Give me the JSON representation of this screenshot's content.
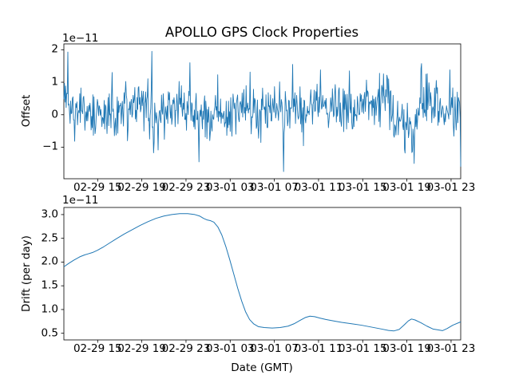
{
  "figure": {
    "title": "APOLLO GPS Clock Properties",
    "xlabel": "Date (GMT)",
    "background": "#ffffff",
    "text_color": "#000000",
    "line_color": "#1f77b4"
  },
  "chart_data": [
    {
      "type": "line",
      "series_name": "offset",
      "ylabel": "Offset",
      "scale_label": "1e−11",
      "unit_scale": 1e-11,
      "ylim": [
        -1.97,
        2.18
      ],
      "yticks": [
        -1,
        0,
        1,
        2
      ],
      "ytick_labels": [
        "−1",
        "0",
        "1",
        "2"
      ],
      "xtick_labels": [
        "02-29 15",
        "02-29 19",
        "02-29 23",
        "03-01 03",
        "03-01 07",
        "03-01 11",
        "03-01 15",
        "03-01 19",
        "03-01 23"
      ],
      "grid": false,
      "legend": "none",
      "noise_model": {
        "n": 700,
        "seed": 20240229,
        "sigma": 0.38,
        "wander_step": 0.05,
        "wander_decay": 0.98,
        "clip": [
          -1.75,
          1.97
        ],
        "start_values": [
          0.6,
          0.85,
          0.5,
          0.7,
          0.35,
          0.45
        ],
        "end_value": -1.6
      },
      "spikes": [
        [
          0.01,
          1.93
        ],
        [
          0.122,
          1.3
        ],
        [
          0.222,
          1.95
        ],
        [
          0.317,
          1.6
        ],
        [
          0.34,
          -1.45
        ],
        [
          0.553,
          -1.75
        ],
        [
          0.576,
          1.55
        ],
        [
          0.647,
          1.38
        ],
        [
          0.72,
          1.35
        ],
        [
          0.883,
          -1.5
        ],
        [
          0.9,
          1.42
        ],
        [
          0.973,
          1.38
        ]
      ],
      "dip_patches": [
        [
          0.335,
          0.37,
          -0.25
        ],
        [
          0.455,
          0.5,
          -0.25
        ],
        [
          0.825,
          0.89,
          -0.45
        ]
      ]
    },
    {
      "type": "line",
      "series_name": "drift",
      "ylabel": "Drift (per day)",
      "scale_label": "1e−11",
      "unit_scale": 1e-11,
      "ylim": [
        0.36,
        3.15
      ],
      "yticks": [
        0.5,
        1.0,
        1.5,
        2.0,
        2.5,
        3.0
      ],
      "ytick_labels": [
        "0.5",
        "1.0",
        "1.5",
        "2.0",
        "2.5",
        "3.0"
      ],
      "xtick_labels": [
        "02-29 15",
        "02-29 19",
        "02-29 23",
        "03-01 03",
        "03-01 07",
        "03-01 11",
        "03-01 15",
        "03-01 19",
        "03-01 23"
      ],
      "grid": false,
      "legend": "none",
      "points": [
        [
          0.0,
          1.9
        ],
        [
          0.012,
          1.97
        ],
        [
          0.025,
          2.04
        ],
        [
          0.04,
          2.11
        ],
        [
          0.052,
          2.15
        ],
        [
          0.06,
          2.17
        ],
        [
          0.072,
          2.2
        ],
        [
          0.085,
          2.25
        ],
        [
          0.1,
          2.32
        ],
        [
          0.115,
          2.4
        ],
        [
          0.132,
          2.49
        ],
        [
          0.152,
          2.59
        ],
        [
          0.172,
          2.68
        ],
        [
          0.192,
          2.77
        ],
        [
          0.212,
          2.85
        ],
        [
          0.232,
          2.92
        ],
        [
          0.252,
          2.97
        ],
        [
          0.272,
          3.0
        ],
        [
          0.292,
          3.02
        ],
        [
          0.312,
          3.02
        ],
        [
          0.33,
          3.0
        ],
        [
          0.342,
          2.97
        ],
        [
          0.352,
          2.92
        ],
        [
          0.36,
          2.89
        ],
        [
          0.37,
          2.87
        ],
        [
          0.378,
          2.84
        ],
        [
          0.388,
          2.74
        ],
        [
          0.398,
          2.57
        ],
        [
          0.408,
          2.33
        ],
        [
          0.418,
          2.05
        ],
        [
          0.428,
          1.75
        ],
        [
          0.438,
          1.45
        ],
        [
          0.448,
          1.18
        ],
        [
          0.458,
          0.95
        ],
        [
          0.468,
          0.79
        ],
        [
          0.478,
          0.7
        ],
        [
          0.49,
          0.64
        ],
        [
          0.505,
          0.62
        ],
        [
          0.525,
          0.61
        ],
        [
          0.545,
          0.62
        ],
        [
          0.565,
          0.65
        ],
        [
          0.58,
          0.7
        ],
        [
          0.595,
          0.77
        ],
        [
          0.608,
          0.83
        ],
        [
          0.62,
          0.86
        ],
        [
          0.632,
          0.85
        ],
        [
          0.645,
          0.82
        ],
        [
          0.66,
          0.79
        ],
        [
          0.68,
          0.76
        ],
        [
          0.7,
          0.73
        ],
        [
          0.725,
          0.7
        ],
        [
          0.75,
          0.67
        ],
        [
          0.775,
          0.63
        ],
        [
          0.8,
          0.59
        ],
        [
          0.818,
          0.56
        ],
        [
          0.832,
          0.55
        ],
        [
          0.845,
          0.58
        ],
        [
          0.858,
          0.68
        ],
        [
          0.868,
          0.76
        ],
        [
          0.876,
          0.8
        ],
        [
          0.885,
          0.78
        ],
        [
          0.9,
          0.72
        ],
        [
          0.915,
          0.65
        ],
        [
          0.93,
          0.59
        ],
        [
          0.944,
          0.57
        ],
        [
          0.954,
          0.555
        ],
        [
          0.966,
          0.6
        ],
        [
          0.98,
          0.67
        ],
        [
          1.0,
          0.74
        ]
      ]
    }
  ]
}
